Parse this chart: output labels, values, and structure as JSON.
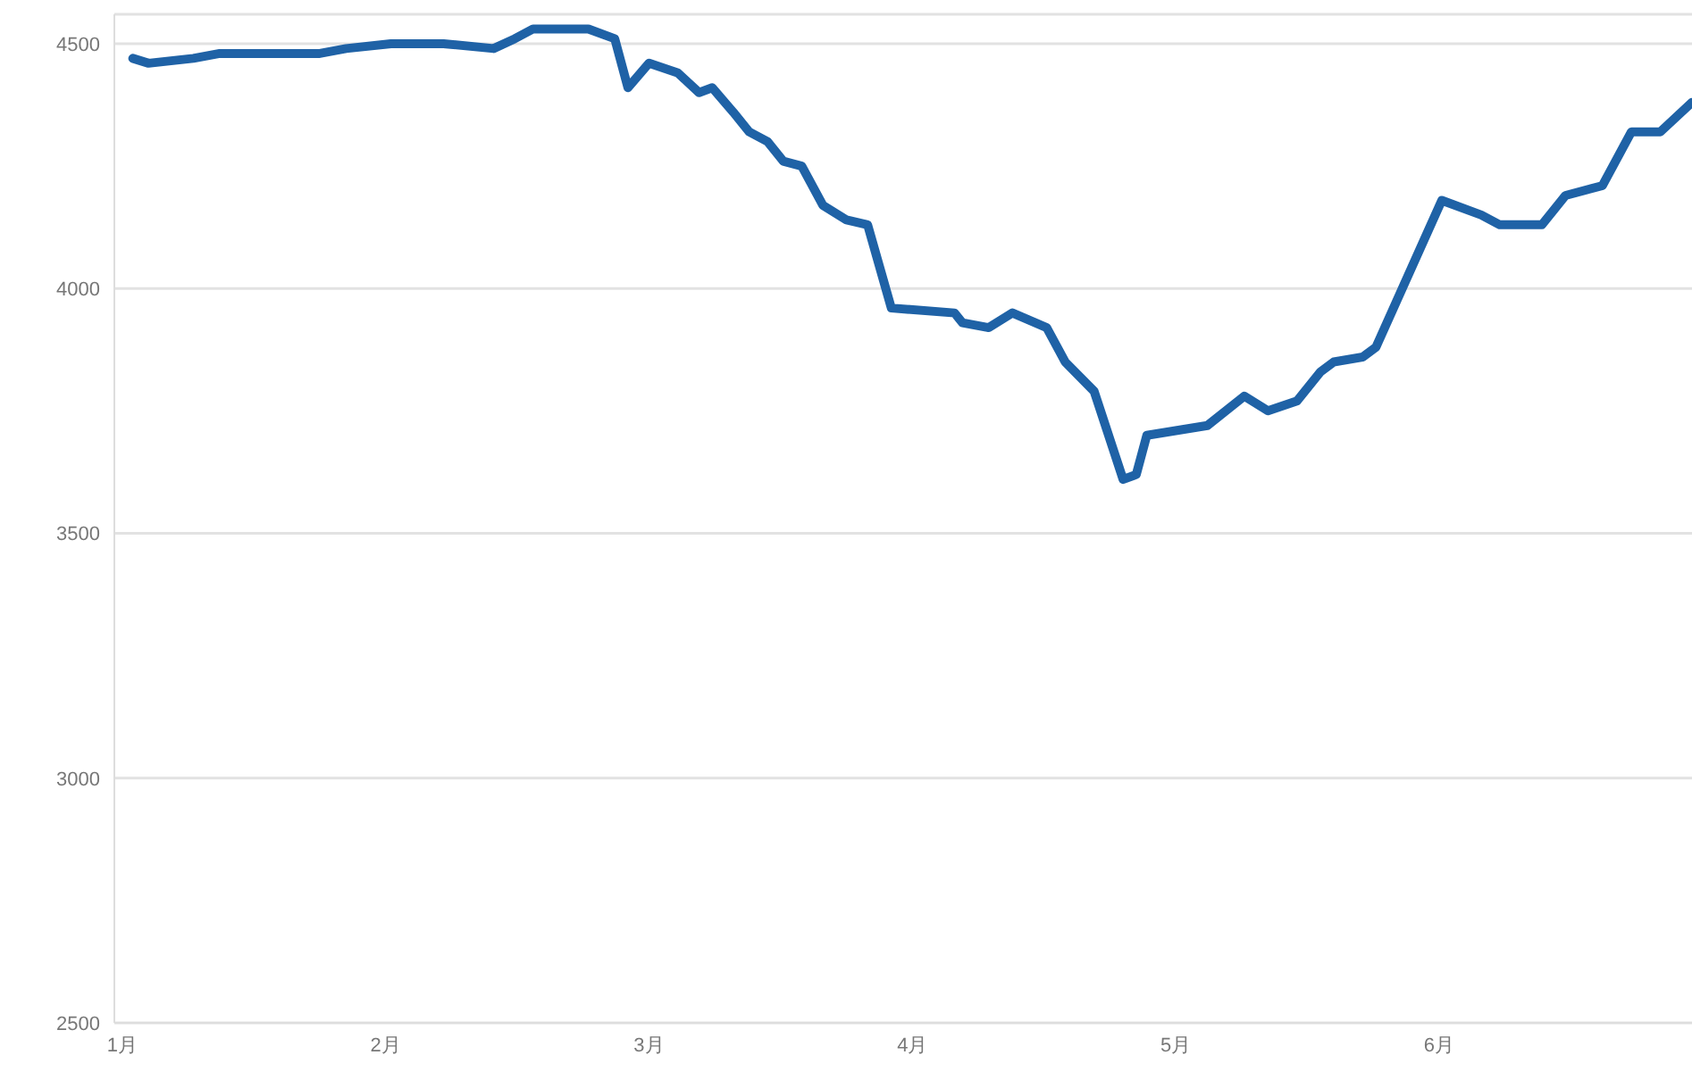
{
  "chart_data": {
    "type": "line",
    "x": [
      1.04,
      1.1,
      1.27,
      1.37,
      1.54,
      1.75,
      1.85,
      2.02,
      2.22,
      2.41,
      2.49,
      2.56,
      2.7,
      2.77,
      2.87,
      2.92,
      3.0,
      3.11,
      3.19,
      3.24,
      3.32,
      3.38,
      3.45,
      3.51,
      3.58,
      3.66,
      3.75,
      3.83,
      3.92,
      4.16,
      4.19,
      4.29,
      4.38,
      4.51,
      4.58,
      4.69,
      4.8,
      4.85,
      4.89,
      5.12,
      5.26,
      5.35,
      5.46,
      5.55,
      5.6,
      5.71,
      5.76,
      6.01,
      6.16,
      6.23,
      6.39,
      6.48,
      6.62,
      6.73,
      6.84,
      6.96
    ],
    "series": [
      {
        "color": "#1f62a6",
        "values": [
          4470,
          4460,
          4470,
          4480,
          4480,
          4480,
          4490,
          4500,
          4500,
          4490,
          4510,
          4530,
          4530,
          4530,
          4510,
          4410,
          4460,
          4440,
          4400,
          4410,
          4360,
          4320,
          4300,
          4260,
          4250,
          4170,
          4140,
          4130,
          3960,
          3950,
          3930,
          3920,
          3950,
          3920,
          3850,
          3790,
          3610,
          3620,
          3700,
          3720,
          3780,
          3750,
          3770,
          3830,
          3850,
          3860,
          3880,
          4180,
          4150,
          4130,
          4130,
          4190,
          4210,
          4320,
          4320,
          4380
        ]
      }
    ],
    "xlim": [
      0.97,
      6.96
    ],
    "xticks": [
      {
        "value": 1,
        "label": "1月"
      },
      {
        "value": 2,
        "label": "2月"
      },
      {
        "value": 3,
        "label": "3月"
      },
      {
        "value": 4,
        "label": "4月"
      },
      {
        "value": 5,
        "label": "5月"
      },
      {
        "value": 6,
        "label": "6月"
      }
    ],
    "ylim": [
      2500,
      4560
    ],
    "yticks": [
      2500,
      3000,
      3500,
      4000,
      4500
    ],
    "grid": "y",
    "legend": false,
    "marker": "none",
    "line_style": "solid"
  }
}
